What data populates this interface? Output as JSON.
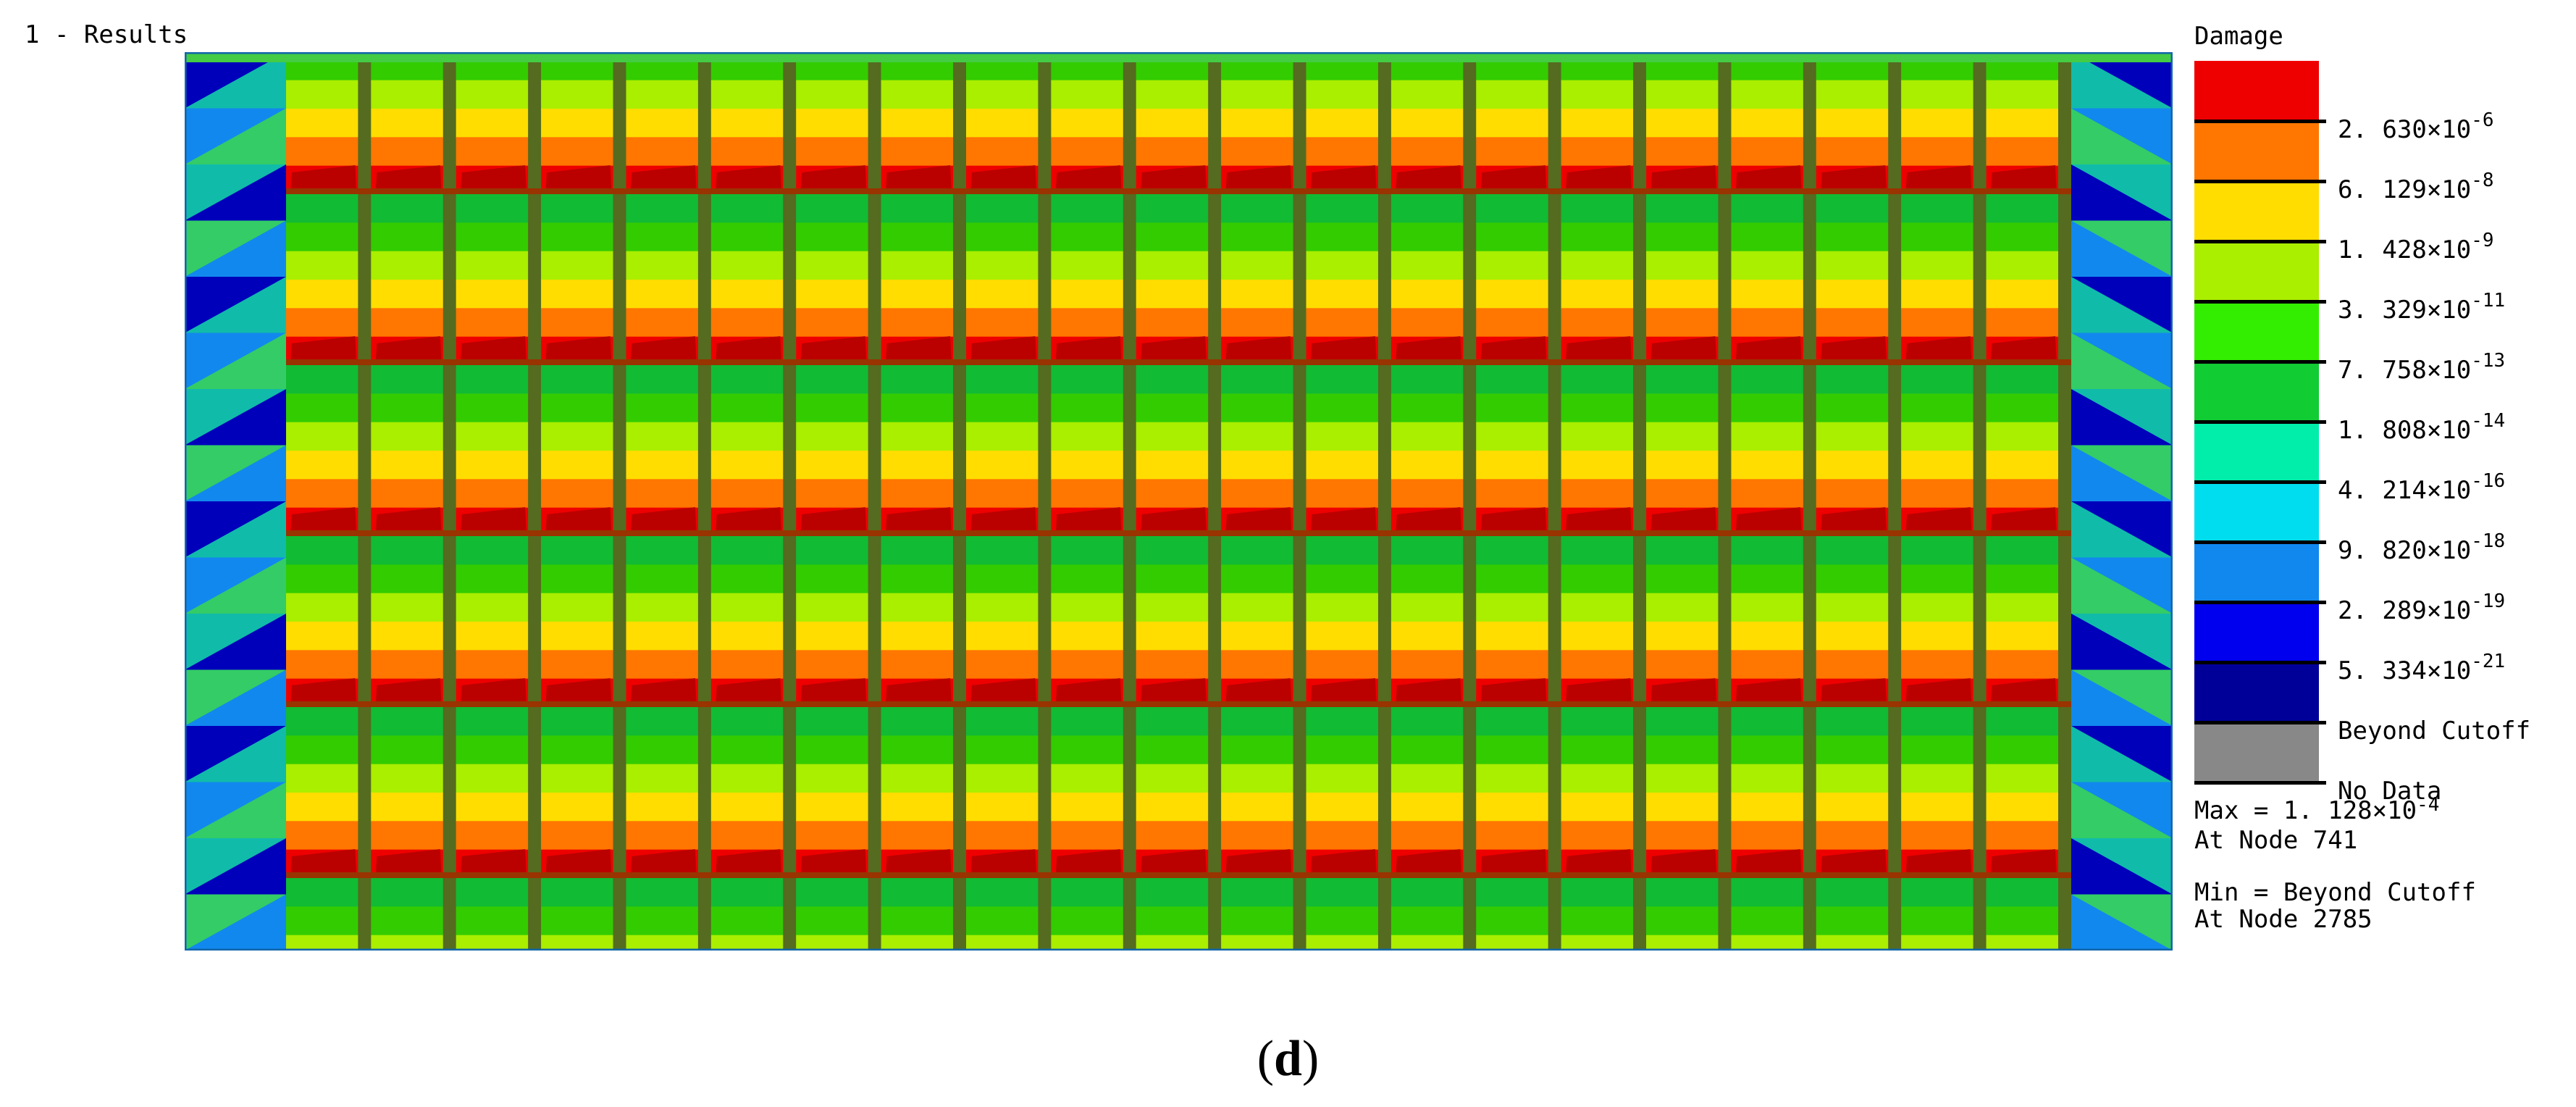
{
  "header": {
    "title": "1 - Results"
  },
  "legend": {
    "title": "Damage",
    "swatch_colors": [
      "#ee0000",
      "#ff7700",
      "#ffdd00",
      "#aaee00",
      "#33ee00",
      "#11cc33",
      "#00eeaa",
      "#00ddee",
      "#1188ee",
      "#0000ee",
      "#000099",
      "#888888"
    ],
    "labels": [
      {
        "mantissa": "2. 630",
        "exponent": "-6"
      },
      {
        "mantissa": "6. 129",
        "exponent": "-8"
      },
      {
        "mantissa": "1. 428",
        "exponent": "-9"
      },
      {
        "mantissa": "3. 329",
        "exponent": "-11"
      },
      {
        "mantissa": "7. 758",
        "exponent": "-13"
      },
      {
        "mantissa": "1. 808",
        "exponent": "-14"
      },
      {
        "mantissa": "4. 214",
        "exponent": "-16"
      },
      {
        "mantissa": "9. 820",
        "exponent": "-18"
      },
      {
        "mantissa": "2. 289",
        "exponent": "-19"
      },
      {
        "mantissa": "5. 334",
        "exponent": "-21"
      },
      {
        "text": "Beyond Cutoff"
      },
      {
        "text": "No Data"
      }
    ]
  },
  "stats": {
    "max_prefix": "Max = 1. 128",
    "max_exponent": "-4",
    "max_node": "At Node 741",
    "min_value": "Min = Beyond Cutoff",
    "min_node": "At Node 2785"
  },
  "caption": {
    "open": "(",
    "letter": "d",
    "close": ")"
  },
  "plot": {
    "columns": 21,
    "row_band_colors": [
      "#ee0000",
      "#ff7700",
      "#ffdd00",
      "#aaee00",
      "#33cc00",
      "#11bb33"
    ],
    "edge_colors": [
      "#0000bb",
      "#1188ee",
      "#11bbaa",
      "#33cc66"
    ]
  }
}
